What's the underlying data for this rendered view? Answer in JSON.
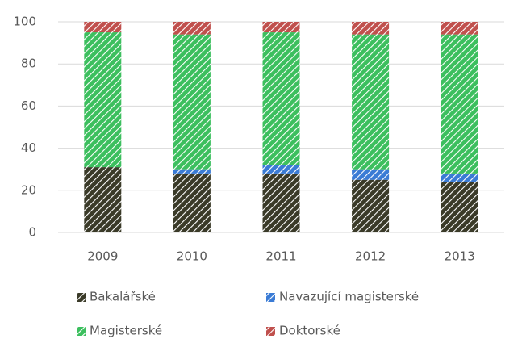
{
  "chart_data": {
    "type": "stacked_bar",
    "categories": [
      "2009",
      "2010",
      "2011",
      "2012",
      "2013"
    ],
    "series": [
      {
        "name": "Bakalářské",
        "color": "#3a3a28",
        "values": [
          31,
          28,
          28,
          25,
          24
        ]
      },
      {
        "name": "Navazující magisterské",
        "color": "#3a7bd5",
        "values": [
          0,
          2,
          4,
          5,
          4
        ]
      },
      {
        "name": "Magisterské",
        "color": "#3cbf5e",
        "values": [
          64,
          64,
          63,
          64,
          66
        ]
      },
      {
        "name": "Doktorské",
        "color": "#c0504d",
        "values": [
          5,
          6,
          5,
          6,
          6
        ]
      }
    ],
    "ylim": [
      0,
      100
    ],
    "yticks": [
      0,
      20,
      40,
      60,
      80,
      100
    ],
    "grid": true
  }
}
